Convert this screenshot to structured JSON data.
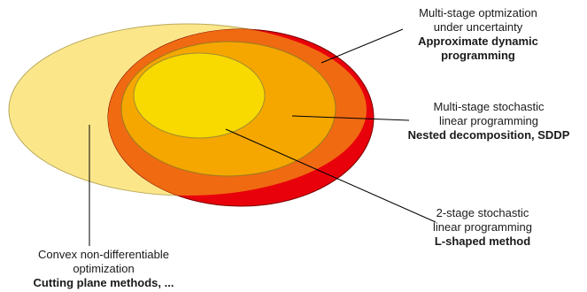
{
  "diagram": {
    "colors": {
      "convex_fill": "#fbe78a",
      "convex_stroke": "#b9a95c",
      "multistage_uncertainty_fill": "#e8000b",
      "multistage_uncertainty_stroke": "#7a0000",
      "overlap_fill": "#f06a12",
      "multistage_stochastic_fill": "#f5a700",
      "multistage_stochastic_stroke": "#9a7a20",
      "two_stage_fill": "#f8d900",
      "two_stage_stroke": "#9f8c30",
      "leader_line": "#000000"
    },
    "labels": {
      "multistage_uncertainty": {
        "line1": "Multi-stage optmization",
        "line2": "under uncertainty",
        "method_line1": "Approximate dynamic",
        "method_line2": "programming"
      },
      "multistage_stochastic": {
        "line1": "Multi-stage stochastic",
        "line2": "linear programming",
        "method": "Nested decomposition, SDDP"
      },
      "two_stage": {
        "line1": "2-stage stochastic",
        "line2": "linear programming",
        "method": "L-shaped method"
      },
      "convex_nondiff": {
        "line1": "Convex non-differentiable",
        "line2": "optimization",
        "method": "Cutting plane methods, ..."
      }
    }
  }
}
